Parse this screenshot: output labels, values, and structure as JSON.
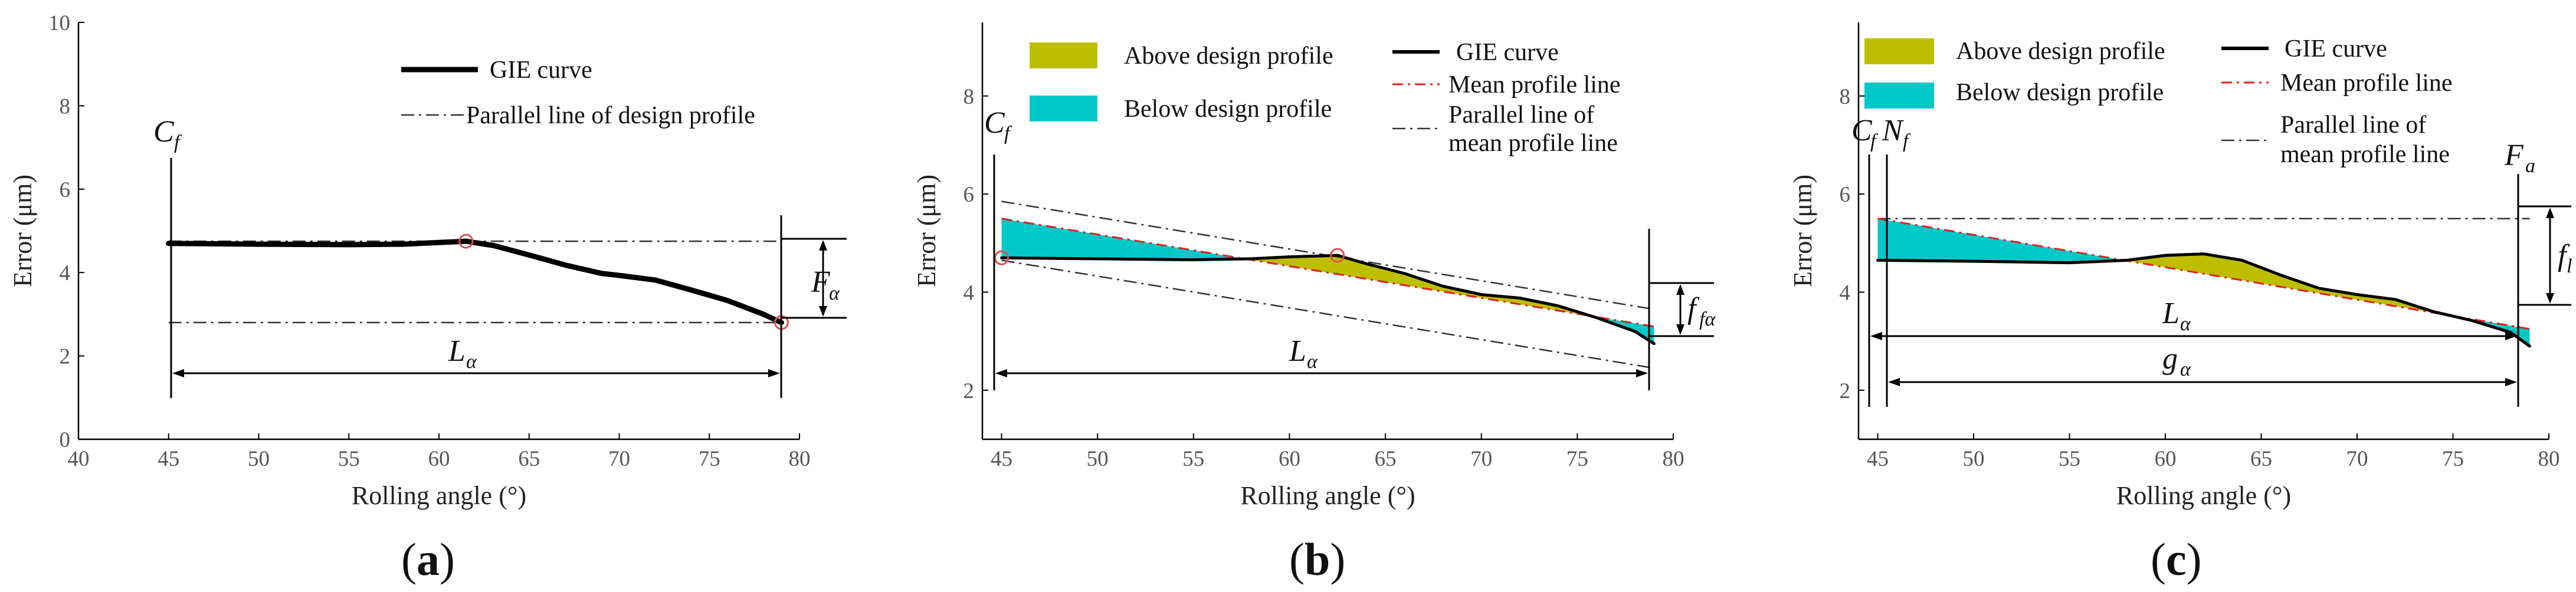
{
  "colors": {
    "above": "#bebe00",
    "below": "#00c8c8",
    "gie": "#000000",
    "mean": "#e02020",
    "marker": "#e05050"
  },
  "chart_data": [
    {
      "id": "a",
      "type": "line",
      "panel_label": "a",
      "xlabel": "Rolling angle (°)",
      "ylabel": "Error (μm)",
      "xlim": [
        40,
        80
      ],
      "ylim": [
        0,
        10
      ],
      "xticks": [
        40,
        45,
        50,
        55,
        60,
        65,
        70,
        75,
        80
      ],
      "yticks": [
        0,
        2,
        4,
        6,
        8,
        10
      ],
      "legend": [
        {
          "label": "GIE curve",
          "style": "solid-thick"
        },
        {
          "label": "Parallel line of design profile",
          "style": "dashdot"
        }
      ],
      "series": [
        {
          "name": "GIE curve",
          "x": [
            45,
            50,
            55,
            58,
            60,
            61.5,
            63,
            65,
            67,
            69,
            70,
            72,
            74,
            76,
            78,
            79
          ],
          "y": [
            4.7,
            4.68,
            4.67,
            4.68,
            4.72,
            4.75,
            4.65,
            4.42,
            4.18,
            3.98,
            3.93,
            3.82,
            3.58,
            3.33,
            3.0,
            2.8
          ]
        }
      ],
      "reference_lines": [
        {
          "label": "Parallel line of design profile",
          "y": 4.75,
          "x": [
            45,
            79
          ]
        },
        {
          "label": "Parallel line of design profile",
          "y": 2.8,
          "x": [
            45,
            79
          ]
        }
      ],
      "markers": [
        {
          "x": 61.5,
          "y": 4.75
        },
        {
          "x": 79,
          "y": 2.8
        }
      ],
      "annotations": {
        "start": "C",
        "start_sub": "f",
        "span": "L",
        "span_sub": "α",
        "deviation": "F",
        "deviation_sub": "α"
      }
    },
    {
      "id": "b",
      "type": "area",
      "panel_label": "b",
      "xlabel": "Rolling angle (°)",
      "ylabel": "Error (μm)",
      "xlim": [
        44,
        80
      ],
      "ylim": [
        1,
        9.5
      ],
      "xticks": [
        45,
        50,
        55,
        60,
        65,
        70,
        75,
        80
      ],
      "yticks": [
        2,
        4,
        6,
        8
      ],
      "legend": [
        {
          "label": "Above design profile",
          "style": "fill-above"
        },
        {
          "label": "Below design profile",
          "style": "fill-below"
        },
        {
          "label": "GIE curve",
          "style": "solid"
        },
        {
          "label": "Mean profile line",
          "style": "mean"
        },
        {
          "label": "Parallel line of",
          "label_cont": "mean profile line",
          "style": "dashdot"
        }
      ],
      "series": [
        {
          "name": "GIE curve",
          "x": [
            45,
            50,
            55,
            58,
            60,
            62.5,
            64,
            66,
            68,
            70,
            72,
            74,
            76,
            78,
            79
          ],
          "y": [
            4.7,
            4.68,
            4.66,
            4.68,
            4.72,
            4.75,
            4.58,
            4.38,
            4.12,
            3.95,
            3.88,
            3.72,
            3.48,
            3.2,
            2.95
          ]
        },
        {
          "name": "Mean profile line",
          "x": [
            45,
            79
          ],
          "y": [
            5.5,
            3.3
          ]
        }
      ],
      "reference_lines": [
        {
          "label": "Parallel line of mean profile line",
          "x": [
            45,
            79
          ],
          "y": [
            5.85,
            3.65
          ]
        },
        {
          "label": "Parallel line of mean profile line",
          "x": [
            45,
            79
          ],
          "y": [
            4.65,
            2.45
          ]
        }
      ],
      "markers": [
        {
          "x": 45,
          "y": 4.7
        },
        {
          "x": 62.5,
          "y": 4.75
        }
      ],
      "annotations": {
        "start": "C",
        "start_sub": "f",
        "span": "L",
        "span_sub": "α",
        "deviation": "f",
        "deviation_sub": "fα"
      }
    },
    {
      "id": "c",
      "type": "area",
      "panel_label": "c",
      "xlabel": "Rolling angle (°)",
      "ylabel": "Error (μm)",
      "xlim": [
        44,
        80
      ],
      "ylim": [
        1,
        9.5
      ],
      "xticks": [
        45,
        50,
        55,
        60,
        65,
        70,
        75,
        80
      ],
      "yticks": [
        2,
        4,
        6,
        8
      ],
      "legend": [
        {
          "label": "Above design profile",
          "style": "fill-above"
        },
        {
          "label": "Below design profile",
          "style": "fill-below"
        },
        {
          "label": "GIE curve",
          "style": "solid"
        },
        {
          "label": "Mean profile line",
          "style": "mean"
        },
        {
          "label": "Parallel line of",
          "label_cont": "mean profile line",
          "style": "dashdot"
        }
      ],
      "series": [
        {
          "name": "GIE curve",
          "x": [
            45,
            50,
            55,
            58,
            60,
            62,
            64,
            66,
            68,
            70,
            72,
            74,
            76,
            78,
            79
          ],
          "y": [
            4.65,
            4.63,
            4.6,
            4.65,
            4.75,
            4.78,
            4.65,
            4.35,
            4.08,
            3.95,
            3.85,
            3.6,
            3.42,
            3.18,
            2.9
          ]
        },
        {
          "name": "Mean profile line",
          "x": [
            45,
            79
          ],
          "y": [
            5.5,
            3.25
          ]
        }
      ],
      "reference_lines": [
        {
          "label": "Parallel line of mean profile line",
          "y": 5.5,
          "x": [
            45,
            79
          ]
        }
      ],
      "annotations": {
        "start": "C",
        "start_sub": "f",
        "start2": "N",
        "start2_sub": "f",
        "end": "F",
        "end_sub": "a",
        "span": "L",
        "span_sub": "α",
        "span2": "g",
        "span2_sub": "α",
        "deviation": "f",
        "deviation_sub": "l"
      }
    }
  ]
}
